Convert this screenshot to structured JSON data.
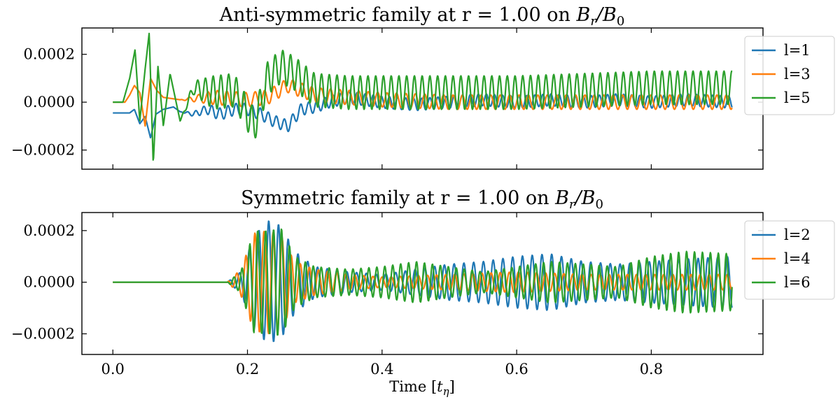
{
  "chart_data": [
    {
      "type": "line",
      "title": "Anti-symmetric family at r = 1.00 on ",
      "title_math": {
        "base": "B",
        "sub": "r",
        "sep": "/",
        "base2": "B",
        "sub2": "0"
      },
      "xlabel": "",
      "ylabel": "",
      "xlim": [
        -0.046,
        0.966
      ],
      "ylim": [
        -0.00028,
        0.00031
      ],
      "xticks": [
        0.0,
        0.2,
        0.4,
        0.6,
        0.8
      ],
      "xtick_labels": [
        "",
        "",
        "",
        "",
        ""
      ],
      "yticks": [
        -0.0002,
        0.0,
        0.0002
      ],
      "ytick_labels": [
        "−0.0002",
        "0.0000",
        "0.0002"
      ],
      "legend_position": "top-right",
      "series": [
        {
          "name": "l=1",
          "color": "#1f77b4",
          "x": [
            0.0,
            0.025,
            0.032,
            0.04,
            0.048,
            0.056,
            0.064,
            0.075,
            0.09,
            0.1,
            0.12,
            0.14,
            0.16,
            0.18,
            0.2,
            0.22,
            0.24,
            0.26,
            0.28,
            0.3,
            0.32,
            0.35,
            0.4,
            0.45,
            0.5,
            0.55,
            0.6,
            0.65,
            0.7,
            0.75,
            0.8,
            0.85,
            0.92
          ],
          "y": [
            -4.5e-05,
            -4.5e-05,
            -3e-05,
            -9e-05,
            -6e-05,
            -0.00015,
            -5e-05,
            -3e-05,
            -2e-05,
            -4e-05,
            -5e-05,
            -3e-05,
            -5e-05,
            -3e-05,
            -3e-05,
            -5e-05,
            -8e-05,
            -0.0001,
            -3e-05,
            -2e-05,
            0.0,
            2e-05,
            0.0,
            -1e-05,
            0.0,
            1e-05,
            0.0,
            1e-05,
            0.0,
            1e-05,
            0.0,
            1e-05,
            0.0
          ],
          "osc_amp": 2.5e-05,
          "osc_period": 0.012
        },
        {
          "name": "l=3",
          "color": "#ff7f0e",
          "x": [
            0.0,
            0.018,
            0.025,
            0.032,
            0.04,
            0.048,
            0.056,
            0.065,
            0.075,
            0.1,
            0.15,
            0.2,
            0.23,
            0.26,
            0.3,
            0.35,
            0.4,
            0.5,
            0.6,
            0.7,
            0.8,
            0.92
          ],
          "y": [
            0.0,
            0.0,
            3e-05,
            7e-05,
            4e-05,
            -0.0001,
            0.0001,
            5e-05,
            2e-05,
            1e-05,
            2e-05,
            1e-05,
            2e-05,
            7e-05,
            3e-05,
            2e-05,
            1e-05,
            0.0,
            0.0,
            0.0,
            0.0,
            0.0
          ],
          "osc_amp": 3e-05,
          "osc_period": 0.014
        },
        {
          "name": "l=5",
          "color": "#2ca02c",
          "x": [
            0.0,
            0.015,
            0.025,
            0.033,
            0.04,
            0.048,
            0.054,
            0.06,
            0.067,
            0.075,
            0.085,
            0.1,
            0.12,
            0.15,
            0.18,
            0.21,
            0.23,
            0.25,
            0.27,
            0.3,
            0.35,
            0.4,
            0.5,
            0.6,
            0.7,
            0.8,
            0.92
          ],
          "y": [
            0.0,
            0.0,
            0.0001,
            0.00022,
            -8e-05,
            0.00014,
            0.00029,
            -0.00026,
            0.00015,
            -0.0001,
            0.00012,
            -8e-05,
            6e-05,
            4e-05,
            5e-05,
            -0.0001,
            0.0001,
            0.00015,
            0.00012,
            5e-05,
            4e-05,
            4e-05,
            4e-05,
            4e-05,
            5e-05,
            6e-05,
            6e-05
          ],
          "osc_amp": 7e-05,
          "osc_period": 0.0115
        }
      ]
    },
    {
      "type": "line",
      "title": "Symmetric family at r = 1.00 on ",
      "title_math": {
        "base": "B",
        "sub": "r",
        "sep": "/",
        "base2": "B",
        "sub2": "0"
      },
      "xlabel": "Time [",
      "xlabel_math": {
        "base": "t",
        "sub": "η",
        "close": "]"
      },
      "ylabel": "",
      "xlim": [
        -0.046,
        0.966
      ],
      "ylim": [
        -0.00028,
        0.00027
      ],
      "xticks": [
        0.0,
        0.2,
        0.4,
        0.6,
        0.8
      ],
      "xtick_labels": [
        "0.0",
        "0.2",
        "0.4",
        "0.6",
        "0.8"
      ],
      "yticks": [
        -0.0002,
        0.0,
        0.0002
      ],
      "ytick_labels": [
        "−0.0002",
        "0.0000",
        "0.0002"
      ],
      "legend_position": "top-right",
      "series": [
        {
          "name": "l=2",
          "color": "#1f77b4",
          "x": [
            0.0,
            0.17,
            0.19,
            0.21,
            0.23,
            0.25,
            0.27,
            0.3,
            0.35,
            0.4,
            0.45,
            0.5,
            0.55,
            0.6,
            0.65,
            0.7,
            0.75,
            0.8,
            0.85,
            0.92
          ],
          "y": [
            0.0,
            0.0,
            4e-05,
            0.00018,
            0.00024,
            0.00022,
            0.00012,
            6e-05,
            4e-05,
            3e-05,
            5e-05,
            7e-05,
            8e-05,
            0.0001,
            0.00011,
            8e-05,
            7e-05,
            8e-05,
            9e-05,
            0.0001
          ],
          "osc_amp": 1.0,
          "osc_period": 0.0145,
          "envelope": true
        },
        {
          "name": "l=4",
          "color": "#ff7f0e",
          "x": [
            0.0,
            0.17,
            0.19,
            0.21,
            0.23,
            0.25,
            0.27,
            0.3,
            0.35,
            0.4,
            0.5,
            0.6,
            0.7,
            0.8,
            0.92
          ],
          "y": [
            0.0,
            0.0,
            5e-05,
            0.00019,
            0.0002,
            0.00018,
            8e-05,
            5e-05,
            3e-05,
            2e-05,
            3e-05,
            4e-05,
            3e-05,
            3e-05,
            3e-05
          ],
          "osc_amp": 1.0,
          "osc_period": 0.0135,
          "envelope": true
        },
        {
          "name": "l=6",
          "color": "#2ca02c",
          "x": [
            0.0,
            0.17,
            0.19,
            0.21,
            0.23,
            0.25,
            0.27,
            0.3,
            0.35,
            0.4,
            0.45,
            0.5,
            0.55,
            0.6,
            0.65,
            0.7,
            0.75,
            0.8,
            0.85,
            0.92
          ],
          "y": [
            0.0,
            0.0,
            4e-05,
            0.0002,
            0.0002,
            0.00021,
            0.0001,
            6e-05,
            5e-05,
            6e-05,
            8e-05,
            6e-05,
            4e-05,
            6e-05,
            8e-05,
            7e-05,
            6e-05,
            0.0001,
            0.00012,
            0.00011
          ],
          "osc_amp": 1.0,
          "osc_period": 0.0118,
          "envelope": true
        }
      ]
    }
  ]
}
